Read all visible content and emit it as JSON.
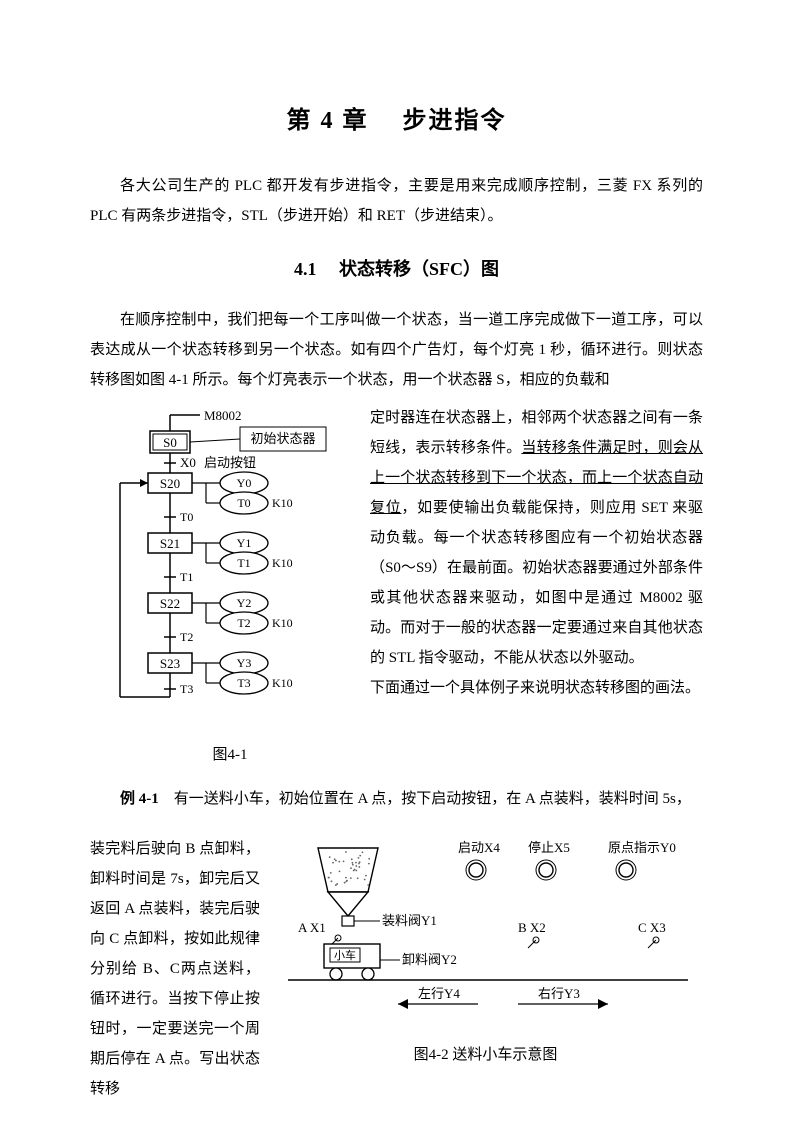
{
  "chapter_title": "第 4 章 　步进指令",
  "intro_para": "各大公司生产的 PLC 都开发有步进指令，主要是用来完成顺序控制，三菱 FX 系列的PLC 有两条步进指令，STL（步进开始）和 RET（步进结束）。",
  "section_title": "4.1 　状态转移（SFC）图",
  "sfc_lead_para": "在顺序控制中，我们把每一个工序叫做一个状态，当一道工序完成做下一道工序，可以表达成从一个状态转移到另一个状态。如有四个广告灯，每个灯亮 1 秒，循环进行。则状态转移图如图 4-1 所示。每个灯亮表示一个状态，用一个状态器 S，相应的负载和",
  "sfc_right_1": "定时器连在状态器上，相邻两个状态器之间有一条短线，表示转移条件。",
  "sfc_right_ul": "当转移条件满足时，则会从上一个状态转移到下一个状态，而上一个状态自动复位",
  "sfc_right_2": "，如要使输出负载能保持，则应用 SET 来驱动负载。每一个状态转移图应有一个初始状态器（S0～S9）在最前面。初始状态器要通过外部条件或其他状态器来驱动，如图中是通过 M8002 驱动。而对于一般的状态器一定要通过来自其他状态的 STL 指令驱动，不能从状态以外驱动。",
  "sfc_right_3": "下面通过一个具体例子来说明状态转移图的画法。",
  "fig41_caption": "图4-1",
  "fig41": {
    "callout": "初始状态器",
    "top_contact": "M8002",
    "init_state": "S0",
    "x0": "X0",
    "x0_label": "启动按钮",
    "rows": [
      {
        "s": "S20",
        "y": "Y0",
        "t": "T0",
        "k": "K10",
        "tt": "T0"
      },
      {
        "s": "S21",
        "y": "Y1",
        "t": "T1",
        "k": "K10",
        "tt": "T1"
      },
      {
        "s": "S22",
        "y": "Y2",
        "t": "T2",
        "k": "K10",
        "tt": "T2"
      },
      {
        "s": "S23",
        "y": "Y3",
        "t": "T3",
        "k": "K10",
        "tt": "T3"
      }
    ]
  },
  "ex_lead": "有一送料小车，初始位置在 A 点，按下启动按钮，在 A 点装料，装料时间 5s，",
  "ex_label": "例 4-1",
  "ex_left": "装完料后驶向 B 点卸料，卸料时间是 7s，卸完后又返回 A 点装料，装完后驶向 C 点卸料，按如此规律分别给 B、C两点送料，循环进行。当按下停止按钮时，一定要送完一个周期后停在 A 点。写出状态转移",
  "fig42_caption": "图4-2 送料小车示意图",
  "fig42": {
    "start": "启动X4",
    "stop": "停止X5",
    "origin": "原点指示Y0",
    "valve_load": "装料阀Y1",
    "valve_unload": "卸料阀Y2",
    "A": "A X1",
    "B": "B X2",
    "C": "C X3",
    "cart": "小车",
    "left": "左行Y4",
    "right": "右行Y3"
  },
  "colors": {
    "line": "#000000",
    "fill": "#ffffff",
    "dots": "#666666"
  }
}
